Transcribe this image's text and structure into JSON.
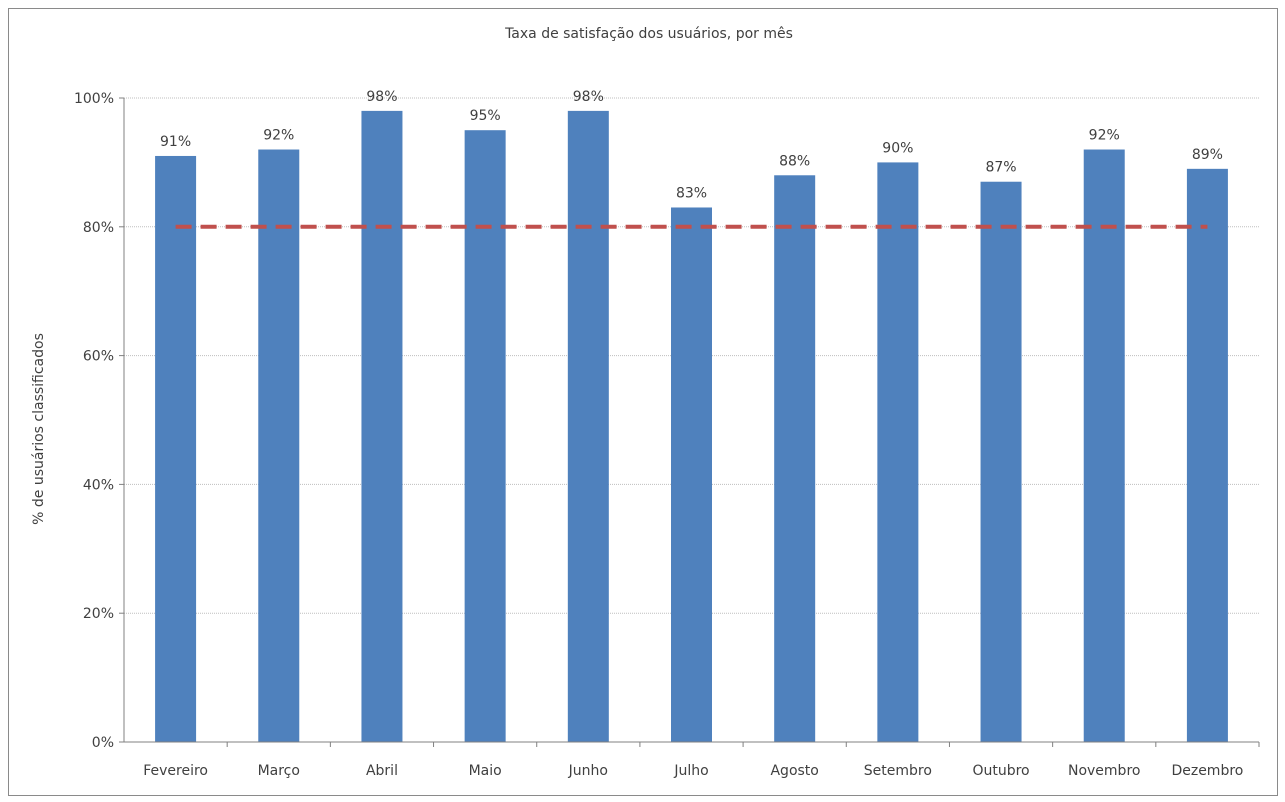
{
  "chart_data": {
    "type": "bar",
    "title": "Taxa de satisfação dos usuários, por mês",
    "xlabel": "",
    "ylabel": "% de usuários classificados",
    "categories": [
      "Fevereiro",
      "Março",
      "Abril",
      "Maio",
      "Junho",
      "Julho",
      "Agosto",
      "Setembro",
      "Outubro",
      "Novembro",
      "Dezembro"
    ],
    "series": [
      {
        "values": [
          91,
          92,
          98,
          95,
          98,
          83,
          88,
          90,
          87,
          92,
          89
        ],
        "color": "#4f81bd"
      },
      {
        "type": "line",
        "style": "dashed",
        "values": [
          80,
          80,
          80,
          80,
          80,
          80,
          80,
          80,
          80,
          80,
          80
        ],
        "color": "#c0504d"
      }
    ],
    "data_labels": [
      "91%",
      "92%",
      "98%",
      "95%",
      "98%",
      "83%",
      "88%",
      "90%",
      "87%",
      "92%",
      "89%"
    ],
    "y_ticks": [
      0,
      20,
      40,
      60,
      80,
      100
    ],
    "y_tick_labels": [
      "0%",
      "20%",
      "40%",
      "60%",
      "80%",
      "100%"
    ],
    "ylim": [
      0,
      100
    ],
    "grid": true,
    "legend": "none",
    "colors": {
      "bar": "#4f81bd",
      "target_line": "#c0504d",
      "grid": "#bfbfbf",
      "axis": "#808080",
      "text": "#404040"
    }
  }
}
